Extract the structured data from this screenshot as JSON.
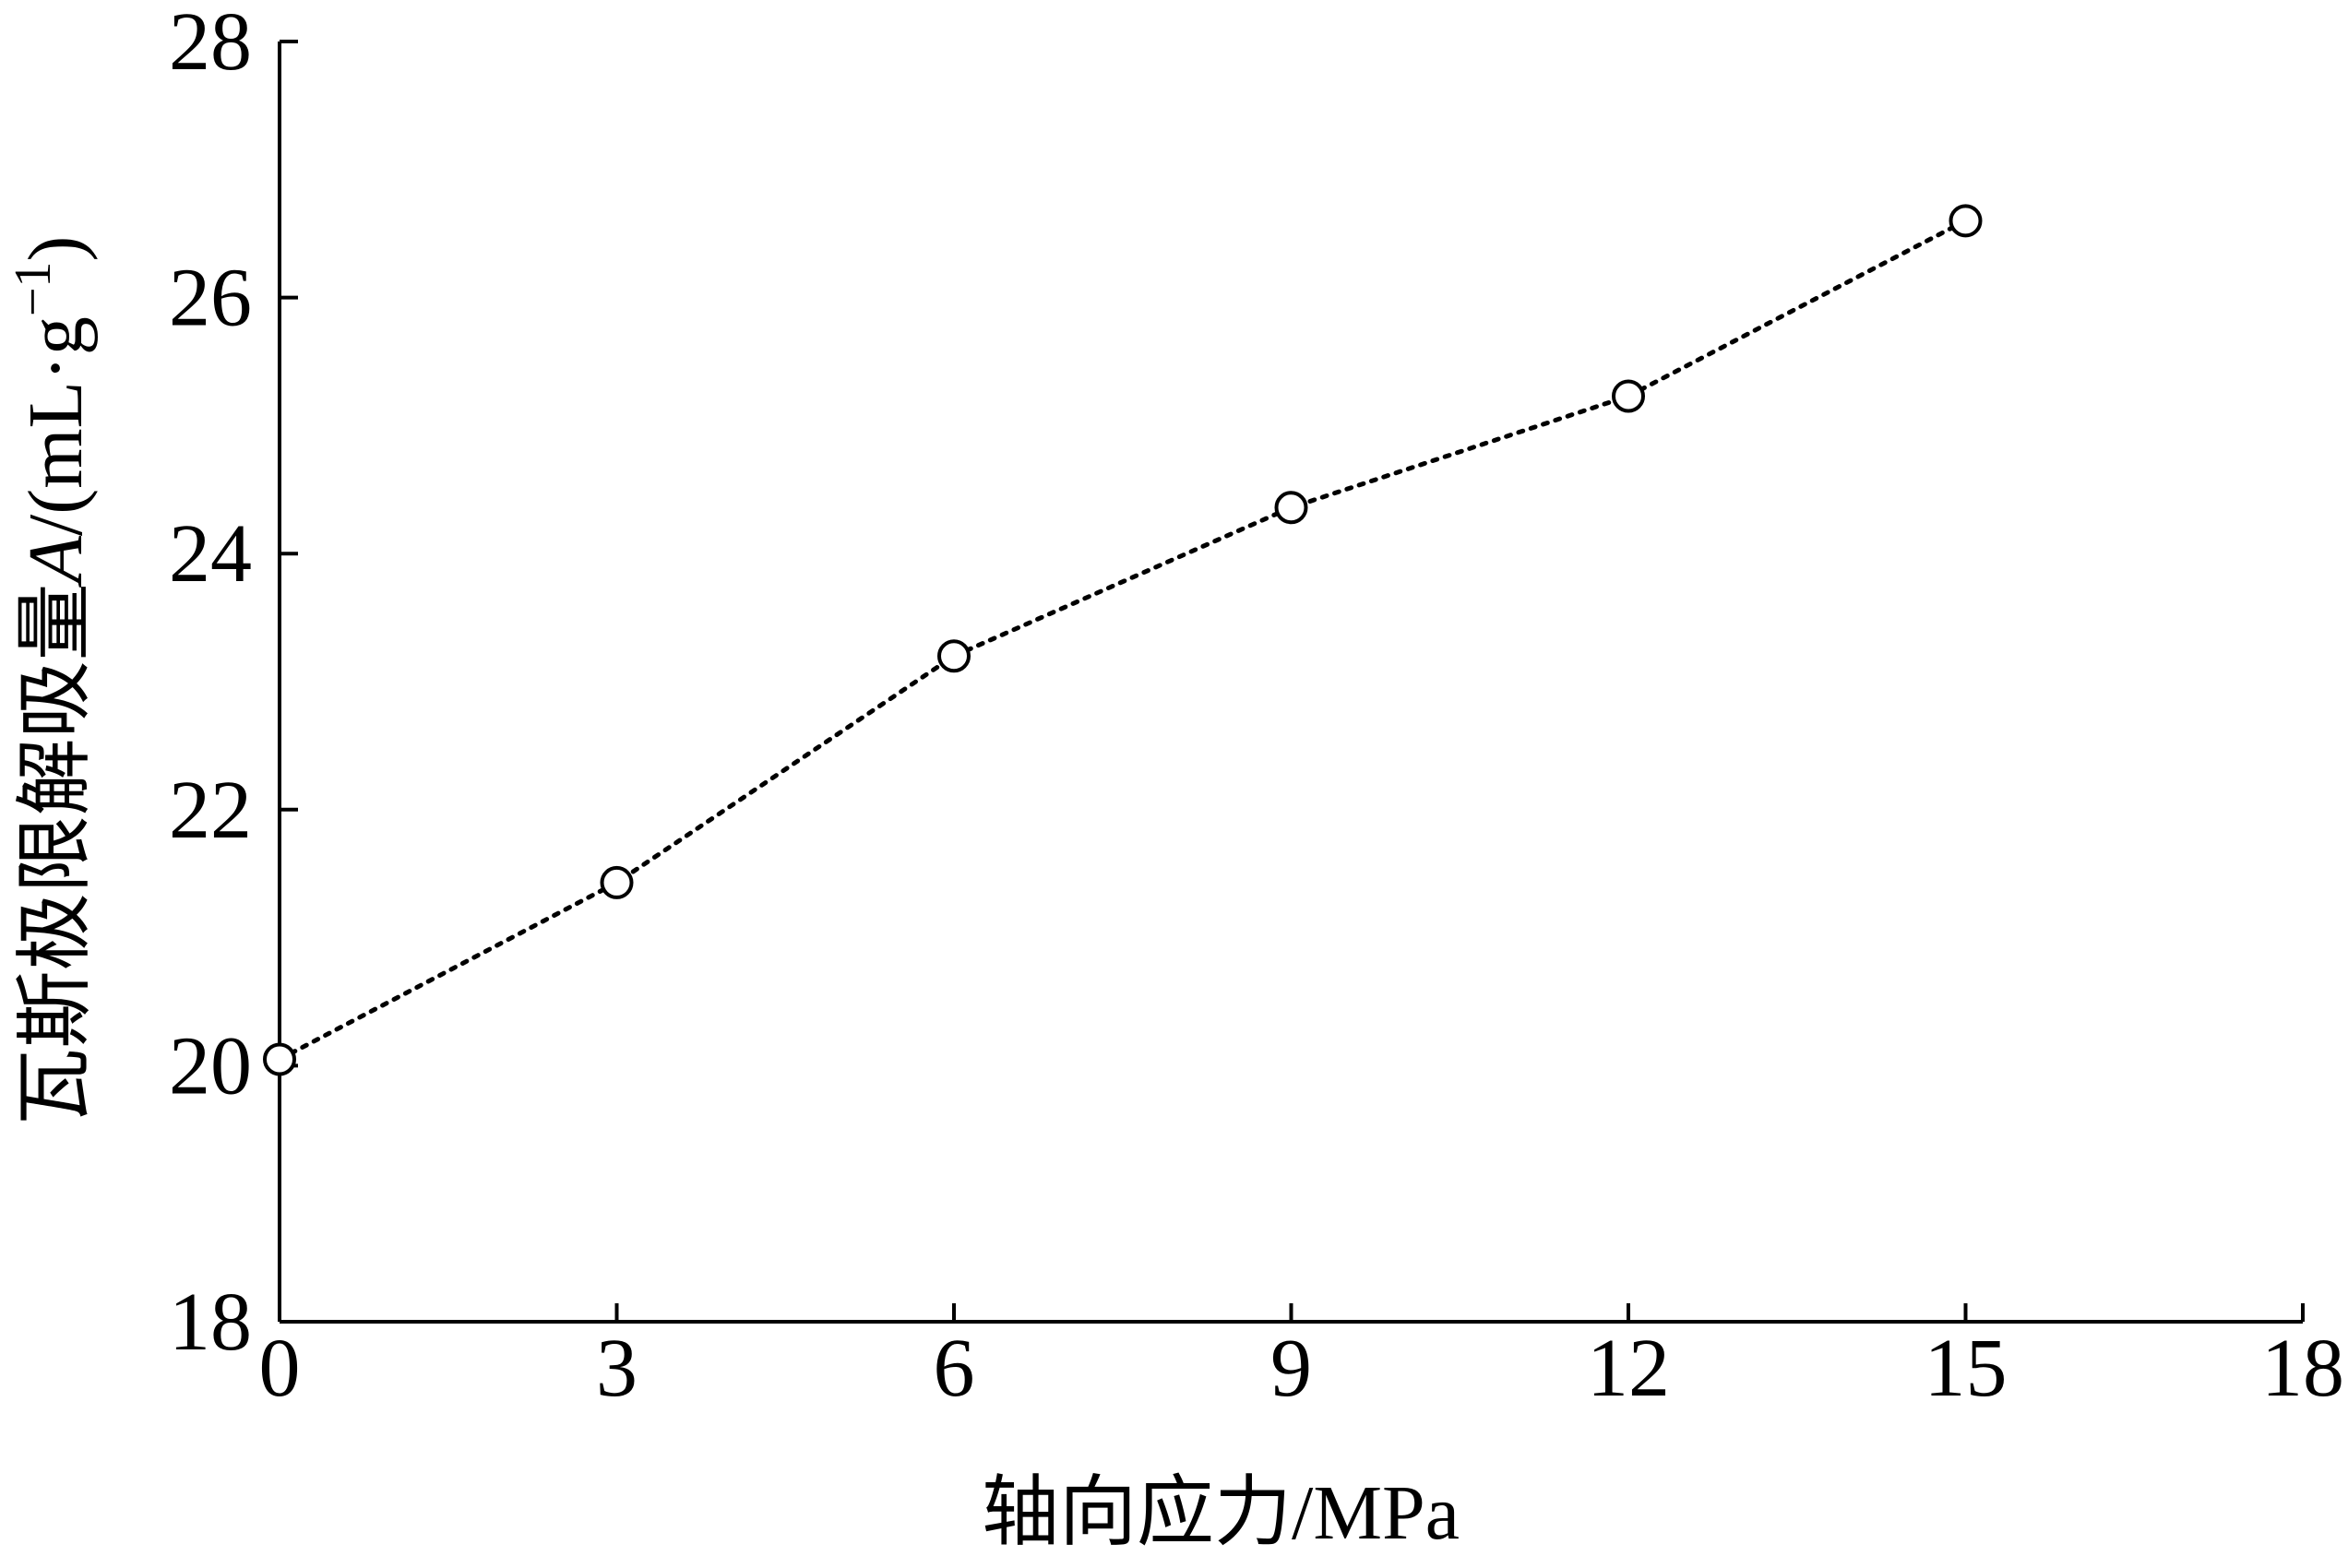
{
  "chart_data": {
    "type": "line",
    "x": [
      0,
      3,
      6,
      9,
      12,
      15
    ],
    "values": [
      20.05,
      21.43,
      23.2,
      24.36,
      25.23,
      26.6
    ],
    "color": "#000000",
    "xlim": [
      0,
      18
    ],
    "xticks": [
      0,
      3,
      6,
      9,
      12,
      15,
      18
    ],
    "ylim": [
      18,
      28
    ],
    "yticks": [
      18,
      20,
      22,
      24,
      26,
      28
    ],
    "grid": false,
    "xlabel": "轴向应力/MPa",
    "ylabel": {
      "text": "瓦斯极限解吸量",
      "symbol": "A",
      "unit": "/(mL·g",
      "exponent": "−1",
      "close": ")"
    }
  }
}
